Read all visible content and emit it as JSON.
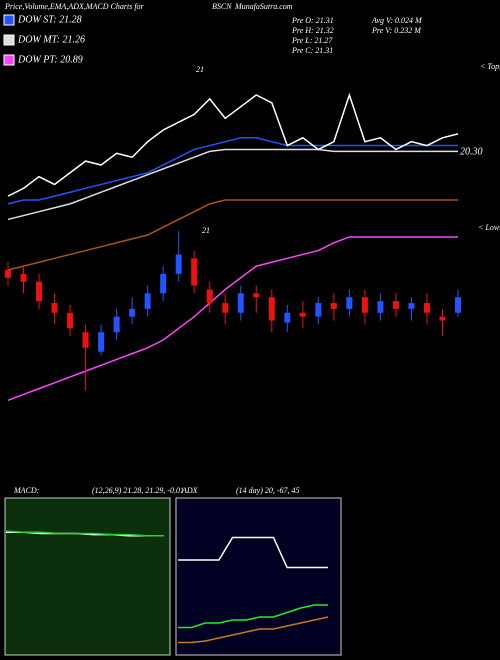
{
  "chart_data": [
    {
      "type": "candlestick",
      "title": "Price,Volume,EMA,ADX,MACD Charts for",
      "symbol": "BSCN",
      "site": "MunafaSutra.com",
      "info": [
        "Pre  O: 21.31",
        "Pre  H: 21.32",
        "Pre  L: 21.27",
        "Pre  C: 21.31",
        "Avg V: 0.024  M",
        "Pre  V: 0.232  M"
      ],
      "annotations": [
        "21",
        "21",
        "< Tops",
        "< Lows"
      ],
      "price_label": "20.30",
      "ylim": [
        20.0,
        21.8
      ],
      "up_color": "#2255ff",
      "down_color": "#ee1111",
      "open": [
        20.72,
        20.7,
        20.66,
        20.55,
        20.5,
        20.4,
        20.3,
        20.4,
        20.48,
        20.52,
        20.6,
        20.7,
        20.78,
        20.62,
        20.55,
        20.5,
        20.6,
        20.58,
        20.45,
        20.5,
        20.48,
        20.55,
        20.52,
        20.58,
        20.5,
        20.56,
        20.52,
        20.55,
        20.48,
        20.5
      ],
      "high": [
        20.76,
        20.74,
        20.7,
        20.6,
        20.54,
        20.44,
        20.44,
        20.52,
        20.58,
        20.64,
        20.74,
        20.92,
        20.82,
        20.66,
        20.6,
        20.64,
        20.64,
        20.62,
        20.54,
        20.56,
        20.58,
        20.6,
        20.62,
        20.62,
        20.6,
        20.6,
        20.58,
        20.6,
        20.52,
        20.62
      ],
      "low": [
        20.64,
        20.6,
        20.52,
        20.44,
        20.38,
        20.1,
        20.28,
        20.36,
        20.44,
        20.48,
        20.56,
        20.66,
        20.6,
        20.5,
        20.44,
        20.46,
        20.5,
        20.4,
        20.4,
        20.42,
        20.44,
        20.46,
        20.48,
        20.44,
        20.46,
        20.48,
        20.46,
        20.44,
        20.38,
        20.48
      ],
      "close": [
        20.68,
        20.66,
        20.56,
        20.5,
        20.42,
        20.32,
        20.4,
        20.48,
        20.52,
        20.6,
        20.7,
        20.8,
        20.64,
        20.55,
        20.5,
        20.6,
        20.58,
        20.46,
        20.5,
        20.48,
        20.55,
        20.52,
        20.58,
        20.5,
        20.56,
        20.52,
        20.55,
        20.5,
        20.46,
        20.58
      ],
      "series": [
        {
          "name": "DOW ST: 21.28",
          "color": "#2255ff",
          "values": [
            21.06,
            21.08,
            21.08,
            21.1,
            21.12,
            21.14,
            21.16,
            21.18,
            21.2,
            21.22,
            21.26,
            21.3,
            21.34,
            21.36,
            21.38,
            21.4,
            21.4,
            21.38,
            21.36,
            21.36,
            21.36,
            21.36,
            21.36,
            21.36,
            21.36,
            21.36,
            21.36,
            21.36,
            21.36,
            21.36
          ]
        },
        {
          "name": "DOW MT: 21.26",
          "color": "#dddddd",
          "values": [
            20.98,
            21.0,
            21.02,
            21.04,
            21.06,
            21.09,
            21.12,
            21.15,
            21.18,
            21.21,
            21.24,
            21.27,
            21.3,
            21.33,
            21.34,
            21.34,
            21.34,
            21.34,
            21.34,
            21.34,
            21.34,
            21.33,
            21.33,
            21.33,
            21.33,
            21.33,
            21.33,
            21.33,
            21.33,
            21.33
          ]
        },
        {
          "name": "DOW PT: 20.89",
          "color": "#ff44ff",
          "values": [
            20.05,
            20.08,
            20.11,
            20.14,
            20.17,
            20.2,
            20.23,
            20.26,
            20.29,
            20.32,
            20.36,
            20.42,
            20.48,
            20.55,
            20.62,
            20.68,
            20.74,
            20.76,
            20.78,
            20.8,
            20.82,
            20.86,
            20.89,
            20.89,
            20.89,
            20.89,
            20.89,
            20.89,
            20.89,
            20.89
          ]
        },
        {
          "color": "#aa5511",
          "values": [
            20.72,
            20.74,
            20.76,
            20.78,
            20.8,
            20.82,
            20.84,
            20.86,
            20.88,
            20.9,
            20.94,
            20.98,
            21.02,
            21.06,
            21.08,
            21.08,
            21.08,
            21.08,
            21.08,
            21.08,
            21.08,
            21.08,
            21.08,
            21.08,
            21.08,
            21.08,
            21.08,
            21.08,
            21.08,
            21.08
          ]
        },
        {
          "color": "#ffffff",
          "values": [
            21.1,
            21.14,
            21.2,
            21.16,
            21.22,
            21.28,
            21.26,
            21.32,
            21.3,
            21.38,
            21.44,
            21.48,
            21.52,
            21.6,
            21.5,
            21.56,
            21.62,
            21.58,
            21.36,
            21.4,
            21.34,
            21.38,
            21.62,
            21.38,
            21.4,
            21.34,
            21.38,
            21.36,
            21.4,
            21.42
          ]
        }
      ]
    },
    {
      "type": "line",
      "title": "MACD:",
      "subtitle": "(12,26,9) 21.28,  21.29,  -0.01",
      "ylim": [
        -1,
        0.3
      ],
      "series": [
        {
          "color": "#ffffff",
          "values": [
            0.02,
            0.02,
            0.01,
            0.01,
            0.01,
            0.0,
            0.0,
            -0.01,
            -0.01,
            -0.01
          ]
        },
        {
          "color": "#33cc33",
          "values": [
            0.03,
            0.02,
            0.02,
            0.01,
            0.01,
            0.01,
            0.0,
            0.0,
            -0.01,
            -0.01
          ]
        }
      ]
    },
    {
      "type": "line",
      "title": "ADX",
      "subtitle": "(14  day) 20,  -67,  45",
      "ylim": [
        0,
        100
      ],
      "series": [
        {
          "color": "#ffffff",
          "values": [
            60,
            60,
            60,
            60,
            75,
            75,
            75,
            75,
            55,
            55,
            55,
            55
          ]
        },
        {
          "color": "#22ee22",
          "values": [
            15,
            15,
            18,
            18,
            20,
            20,
            22,
            22,
            25,
            28,
            30,
            30
          ]
        },
        {
          "color": "#cc7722",
          "values": [
            5,
            5,
            6,
            8,
            10,
            12,
            14,
            14,
            16,
            18,
            20,
            22
          ]
        }
      ]
    }
  ]
}
